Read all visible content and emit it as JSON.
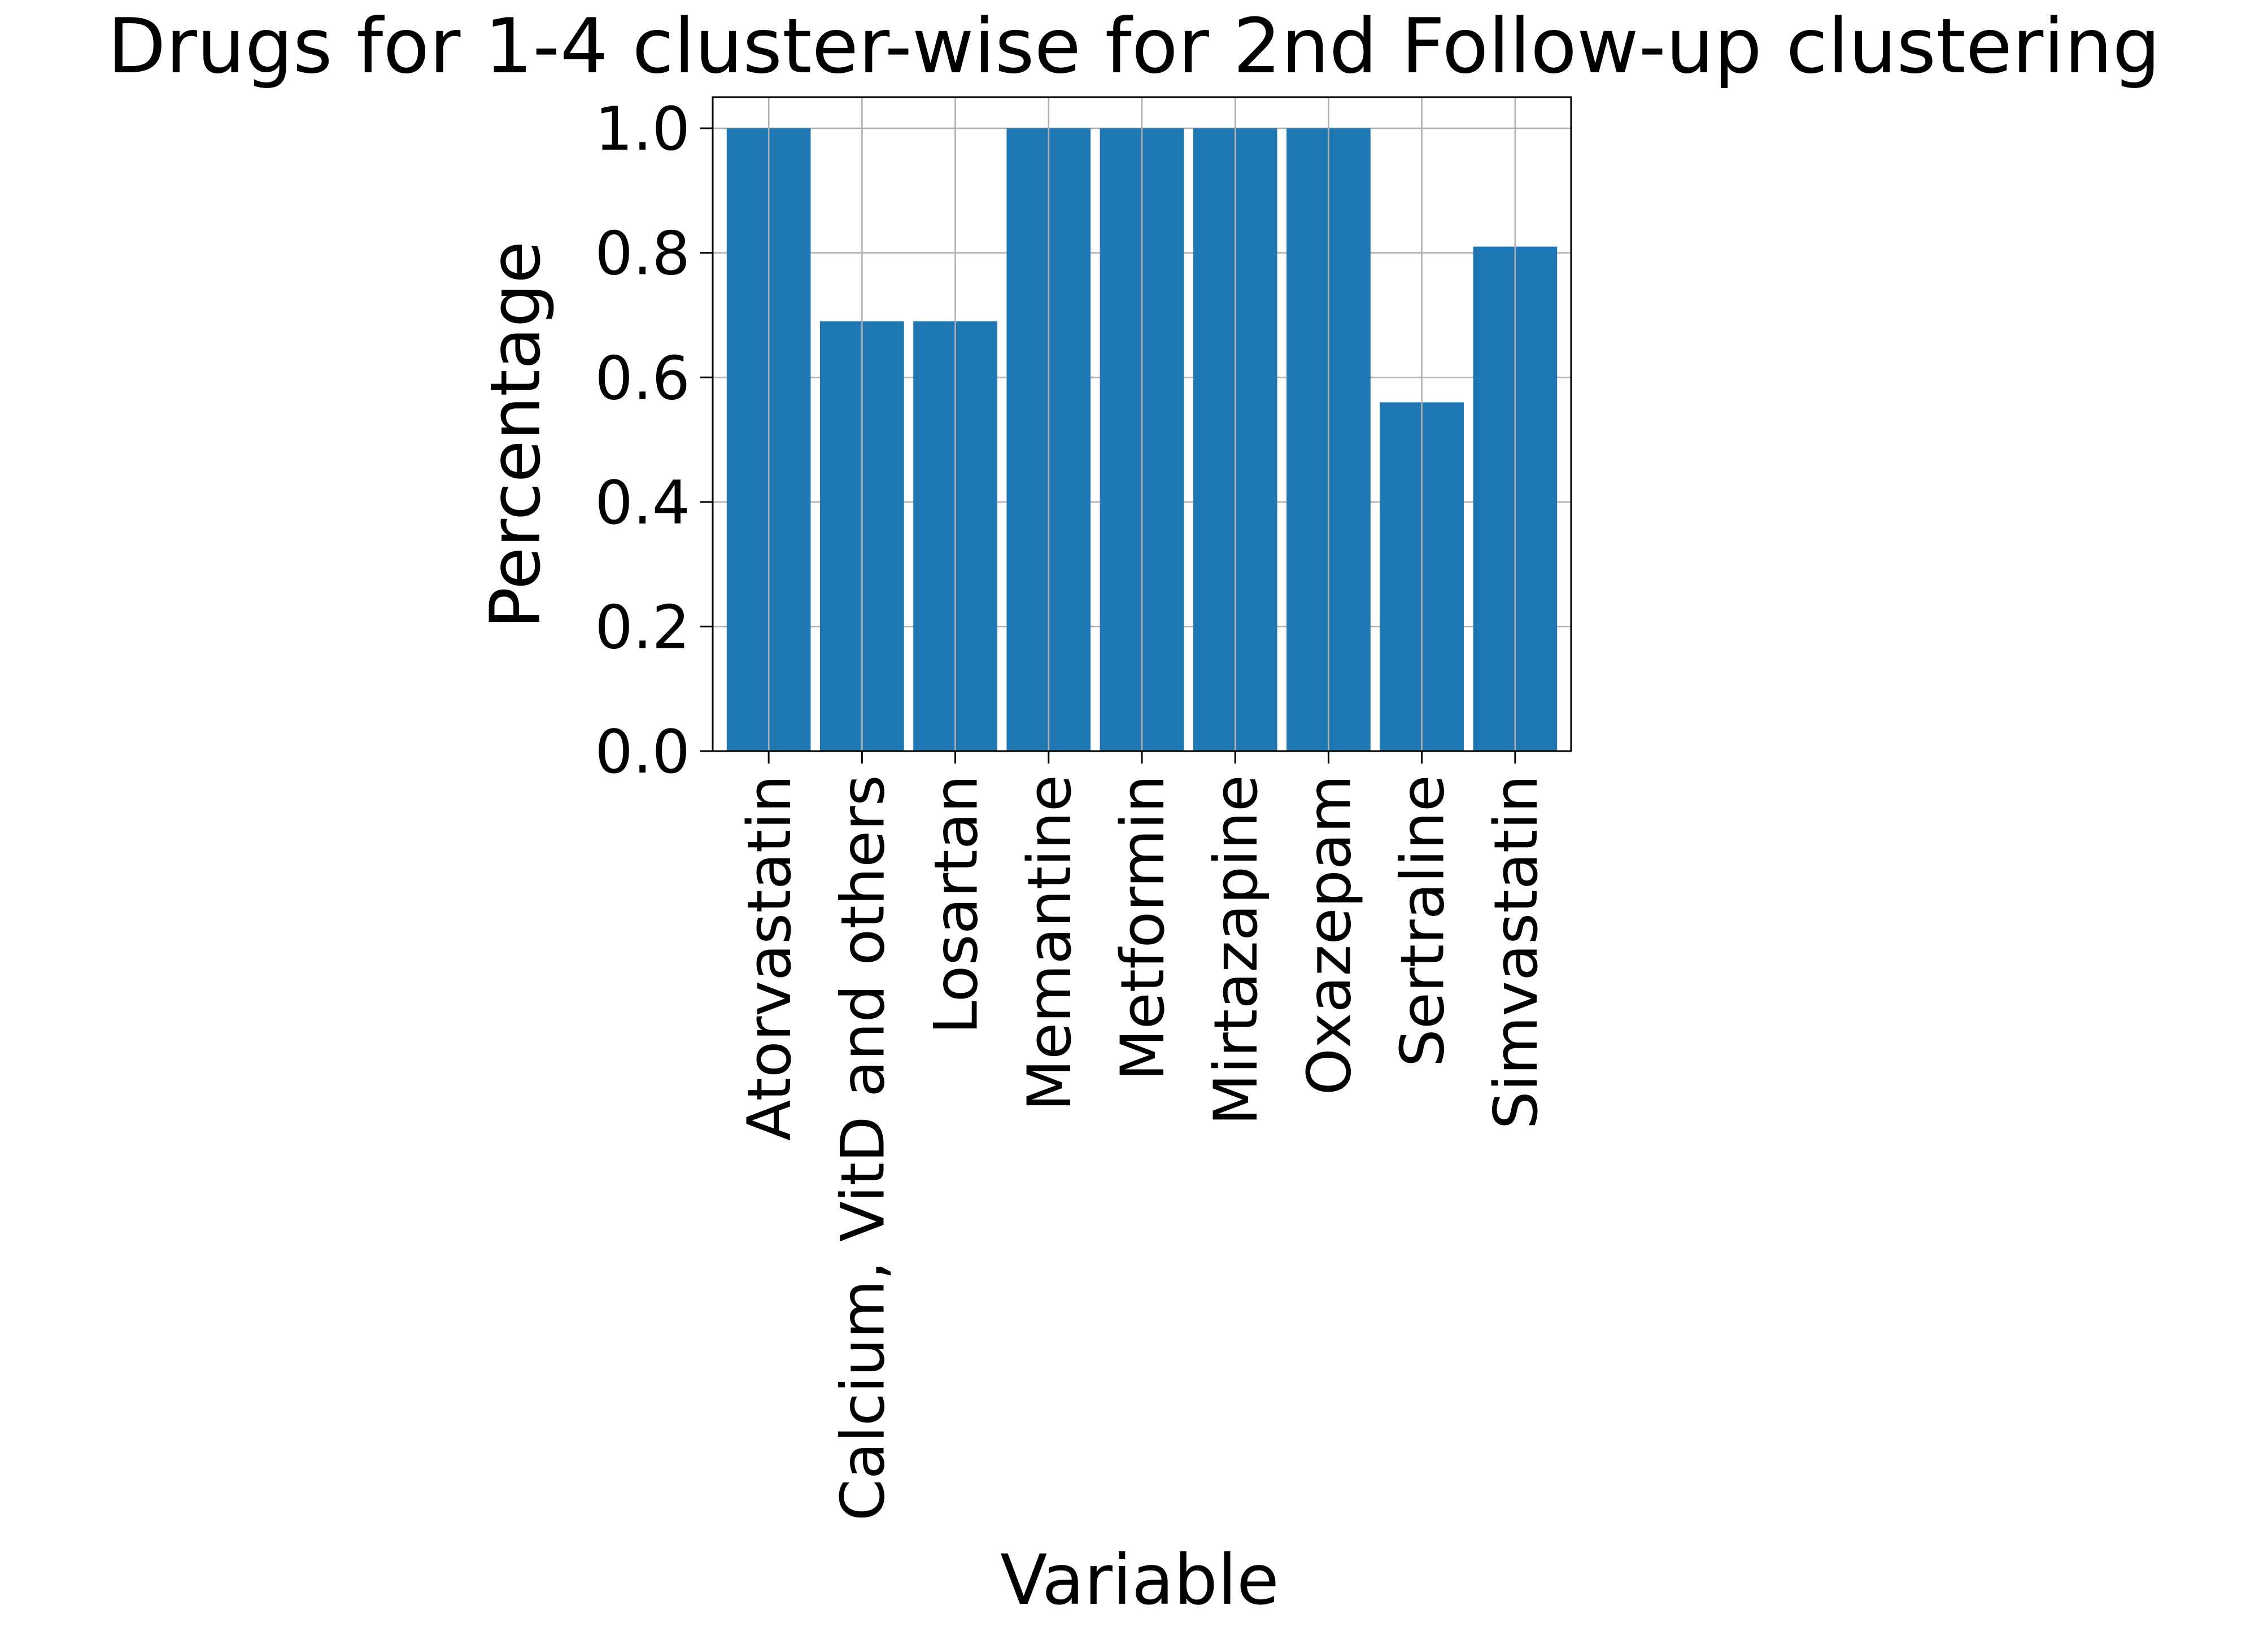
{
  "chart_data": {
    "type": "bar",
    "title": "Drugs for 1-4 cluster-wise for 2nd Follow-up clustering",
    "xlabel": "Variable",
    "ylabel": "Percentage",
    "categories": [
      "Atorvastatin",
      "Calcium, VitD and others",
      "Losartan",
      "Memantine",
      "Metformin",
      "Mirtazapine",
      "Oxazepam",
      "Sertraline",
      "Simvastatin"
    ],
    "values": [
      1.0,
      0.69,
      0.69,
      1.0,
      1.0,
      1.0,
      1.0,
      0.56,
      0.81
    ],
    "ylim": [
      0,
      1.05
    ],
    "yticks": [
      "0.0",
      "0.2",
      "0.4",
      "0.6",
      "0.8",
      "1.0"
    ],
    "ytick_values": [
      0,
      0.2,
      0.4,
      0.6,
      0.8,
      1.0
    ],
    "grid": true,
    "bar_color": "#1f77b4",
    "grid_color": "#b0b0b0"
  }
}
